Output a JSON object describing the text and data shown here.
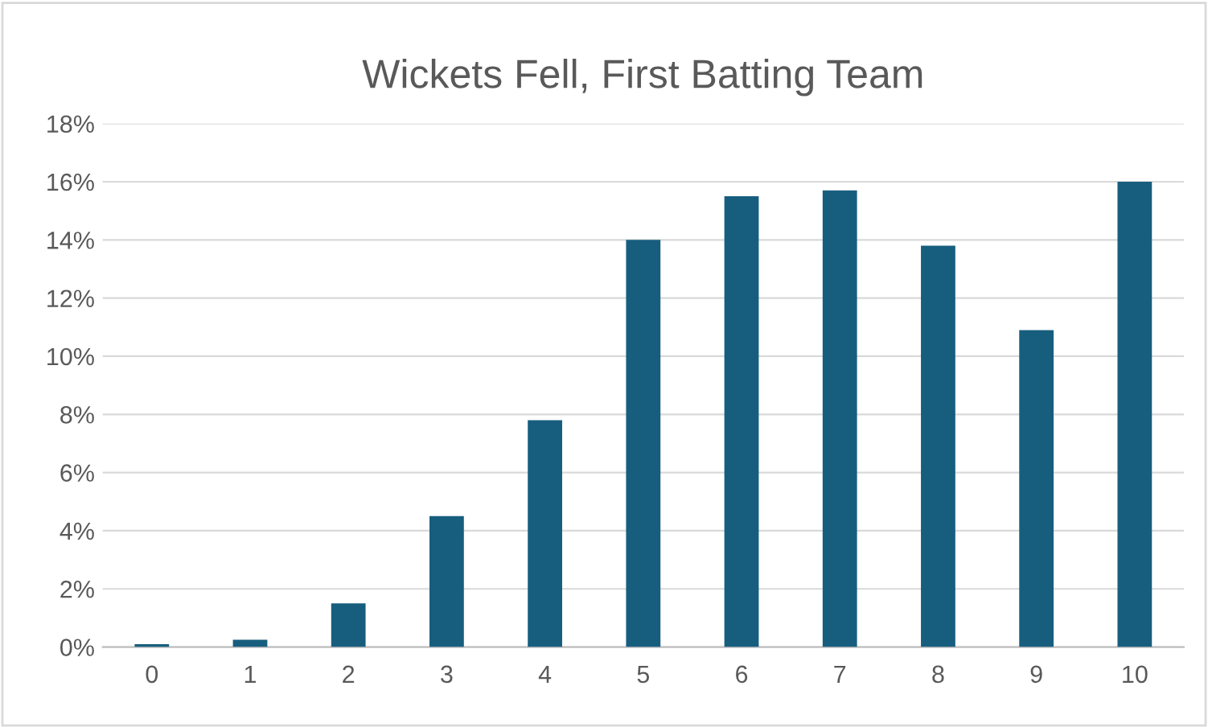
{
  "chart_data": {
    "type": "bar",
    "title": "Wickets Fell, First Batting Team",
    "categories": [
      "0",
      "1",
      "2",
      "3",
      "4",
      "5",
      "6",
      "7",
      "8",
      "9",
      "10"
    ],
    "values": [
      0.1,
      0.25,
      1.5,
      4.5,
      7.8,
      14.0,
      15.5,
      15.7,
      13.8,
      10.9,
      16.0
    ],
    "color": "#175e7e",
    "ylim": [
      0,
      18
    ],
    "yticks": [
      {
        "value": 0,
        "label": "0%"
      },
      {
        "value": 2,
        "label": "2%"
      },
      {
        "value": 4,
        "label": "4%"
      },
      {
        "value": 6,
        "label": "6%"
      },
      {
        "value": 8,
        "label": "8%"
      },
      {
        "value": 10,
        "label": "10%"
      },
      {
        "value": 12,
        "label": "12%"
      },
      {
        "value": 14,
        "label": "14%"
      },
      {
        "value": 16,
        "label": "16%"
      },
      {
        "value": 18,
        "label": "18%"
      }
    ],
    "grid": "y",
    "legend": false
  }
}
